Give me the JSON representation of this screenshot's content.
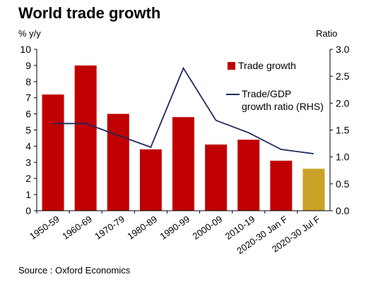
{
  "chart_data": {
    "type": "bar",
    "title": "World trade growth",
    "source": "Source : Oxford Economics",
    "categories": [
      "1950-59",
      "1960-69",
      "1970-79",
      "1980-89",
      "1990-99",
      "2000-09",
      "2010-19",
      "2020-30 Jan F",
      "2020-30 Jul F"
    ],
    "series": [
      {
        "name": "Trade growth",
        "type": "bar",
        "axis": "left",
        "color": "#C00000",
        "highlight_color": "#C9A227",
        "highlight_index": 8,
        "values": [
          7.2,
          9.0,
          6.0,
          3.8,
          5.8,
          4.1,
          4.4,
          3.1,
          2.6
        ]
      },
      {
        "name": "Trade/GDP growth ratio (RHS)",
        "type": "line",
        "axis": "right",
        "color": "#1F2A5E",
        "values": [
          1.62,
          1.62,
          1.4,
          1.18,
          2.65,
          1.68,
          1.45,
          1.14,
          1.06
        ]
      }
    ],
    "ylabel": "% y/y",
    "ylim": [
      0,
      10
    ],
    "yticks": [
      "0",
      "1",
      "2",
      "3",
      "4",
      "5",
      "6",
      "7",
      "8",
      "9",
      "10"
    ],
    "y2label": "Ratio",
    "y2lim": [
      0,
      3
    ],
    "y2ticks": [
      "0.0",
      "0.5",
      "1.0",
      "1.5",
      "2.0",
      "2.5",
      "3.0"
    ],
    "grid": false,
    "legend_position": "right"
  }
}
